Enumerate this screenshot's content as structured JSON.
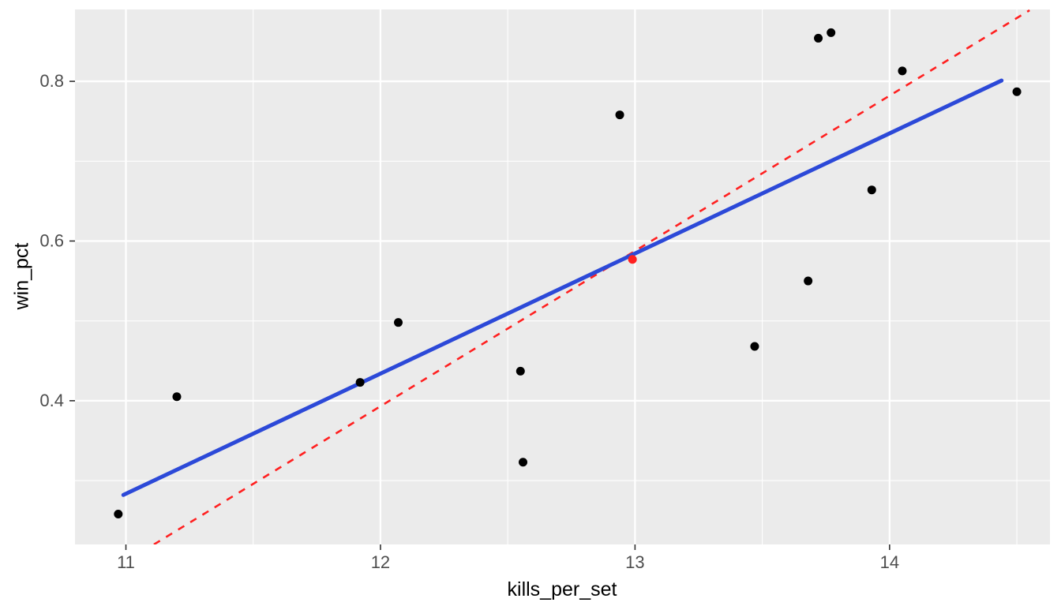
{
  "chart_data": {
    "type": "scatter",
    "title": "",
    "xlabel": "kills_per_set",
    "ylabel": "win_pct",
    "xlim": [
      10.8,
      14.63
    ],
    "ylim": [
      0.22,
      0.89
    ],
    "grid": true,
    "legend": "none",
    "panel_bg": "#EBEBEB",
    "grid_color": "#FFFFFF",
    "tick_label_color": "#4D4D4D",
    "tick_mark_color": "#333333",
    "point_color": "#000000",
    "x_major_ticks": [
      11,
      12,
      13,
      14
    ],
    "x_minor_ticks": [
      11.5,
      12.5,
      13.5,
      14.5
    ],
    "y_major_ticks": [
      0.4,
      0.6,
      0.8
    ],
    "y_minor_ticks": [
      0.3,
      0.5,
      0.7
    ],
    "x_tick_labels": [
      "11",
      "12",
      "13",
      "14"
    ],
    "y_tick_labels": [
      "0.4",
      "0.6",
      "0.8"
    ],
    "points": [
      {
        "x": 10.97,
        "y": 0.258
      },
      {
        "x": 11.2,
        "y": 0.405
      },
      {
        "x": 11.92,
        "y": 0.423
      },
      {
        "x": 12.07,
        "y": 0.498
      },
      {
        "x": 12.55,
        "y": 0.437
      },
      {
        "x": 12.56,
        "y": 0.323
      },
      {
        "x": 12.94,
        "y": 0.758
      },
      {
        "x": 13.47,
        "y": 0.468
      },
      {
        "x": 13.68,
        "y": 0.55
      },
      {
        "x": 13.72,
        "y": 0.854
      },
      {
        "x": 13.77,
        "y": 0.861
      },
      {
        "x": 13.93,
        "y": 0.664
      },
      {
        "x": 14.05,
        "y": 0.813
      },
      {
        "x": 14.5,
        "y": 0.787
      }
    ],
    "highlight_point": {
      "x": 12.99,
      "y": 0.577,
      "color": "#FF2020",
      "radius": 5.5
    },
    "fit_line": {
      "name": "blue-regression-line",
      "style": "solid",
      "color": "#2C49D8",
      "width": 5,
      "x1": 10.99,
      "y1": 0.282,
      "x2": 14.44,
      "y2": 0.801
    },
    "reference_line": {
      "name": "red-dashed-line",
      "style": "dashed",
      "color": "#FF2020",
      "width": 2.6,
      "x1": 11.11,
      "y1": 0.22,
      "x2": 14.55,
      "y2": 0.889
    },
    "point_radius": 5.5
  }
}
